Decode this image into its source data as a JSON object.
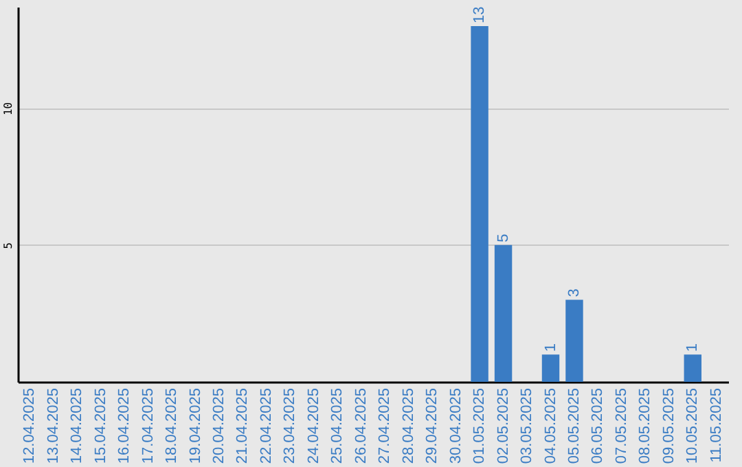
{
  "chart_data": {
    "type": "bar",
    "categories": [
      "12.04.2025",
      "13.04.2025",
      "14.04.2025",
      "15.04.2025",
      "16.04.2025",
      "17.04.2025",
      "18.04.2025",
      "19.04.2025",
      "20.04.2025",
      "21.04.2025",
      "22.04.2025",
      "23.04.2025",
      "24.04.2025",
      "25.04.2025",
      "26.04.2025",
      "27.04.2025",
      "28.04.2025",
      "29.04.2025",
      "30.04.2025",
      "01.05.2025",
      "02.05.2025",
      "03.05.2025",
      "04.05.2025",
      "05.05.2025",
      "06.05.2025",
      "07.05.2025",
      "08.05.2025",
      "09.05.2025",
      "10.05.2025",
      "11.05.2025"
    ],
    "values": [
      null,
      null,
      null,
      null,
      null,
      null,
      null,
      null,
      null,
      null,
      null,
      null,
      null,
      null,
      null,
      null,
      null,
      null,
      null,
      13,
      5,
      null,
      1,
      3,
      null,
      null,
      null,
      null,
      1,
      null
    ],
    "color": "#3a7cc4",
    "ylim": [
      0,
      13.7
    ],
    "yticks": [
      5,
      10
    ],
    "grid": "y",
    "data_labels": true
  }
}
